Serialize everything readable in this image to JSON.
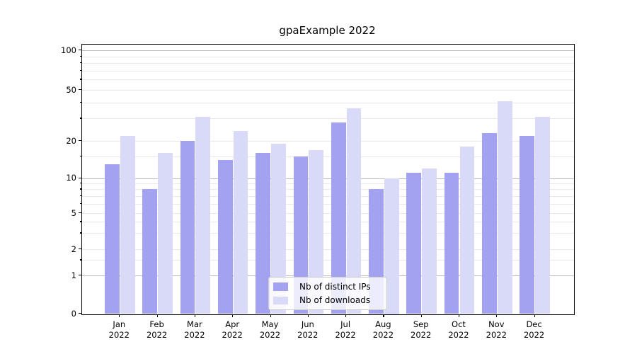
{
  "chart_data": {
    "type": "bar",
    "title": "gpaExample 2022",
    "year": "2022",
    "months": [
      "Jan",
      "Feb",
      "Mar",
      "Apr",
      "May",
      "Jun",
      "Jul",
      "Aug",
      "Sep",
      "Oct",
      "Nov",
      "Dec"
    ],
    "series": [
      {
        "name": "Nb of distinct IPs",
        "color": "#a2a2f0",
        "values": [
          13,
          8,
          20,
          14,
          16,
          15,
          28,
          8,
          11,
          11,
          23,
          22
        ]
      },
      {
        "name": "Nb of downloads",
        "color": "#d9d9f8",
        "values": [
          22,
          16,
          31,
          24,
          19,
          17,
          36,
          10,
          12,
          18,
          41,
          31
        ]
      }
    ],
    "y_ticks": [
      0,
      1,
      2,
      5,
      10,
      20,
      50,
      100
    ],
    "minor_gridlines": [
      1.5,
      3,
      4,
      6,
      7,
      8,
      9,
      15,
      30,
      40,
      60,
      70,
      80,
      90
    ],
    "y_scale": "symlog-like",
    "ylim": [
      0,
      110
    ],
    "grid": true,
    "legend_position": "lower center"
  }
}
